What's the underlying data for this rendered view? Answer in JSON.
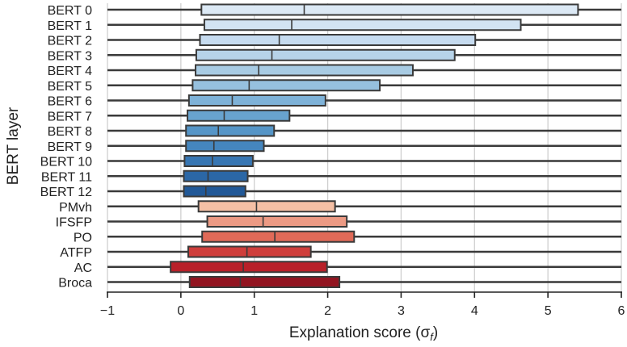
{
  "chart_data": {
    "type": "box",
    "orientation": "horizontal",
    "xlabel": "Explanation score (σ",
    "xlabel_sub": "f",
    "xlabel_close": ")",
    "ylabel": "BERT layer",
    "xlim": [
      -1,
      6
    ],
    "xticks": [
      -1,
      0,
      1,
      2,
      3,
      4,
      5,
      6
    ],
    "xtick_labels": [
      "−1",
      "0",
      "1",
      "2",
      "3",
      "4",
      "5",
      "6"
    ],
    "grid": "vertical",
    "categories": [
      "BERT 0",
      "BERT 1",
      "BERT 2",
      "BERT 3",
      "BERT 4",
      "BERT 5",
      "BERT 6",
      "BERT 7",
      "BERT 8",
      "BERT 9",
      "BERT 10",
      "BERT 11",
      "BERT 12",
      "PMvh",
      "IFSFP",
      "PO",
      "ATFP",
      "AC",
      "Broca"
    ],
    "boxes": [
      {
        "q1": 0.28,
        "median": 1.68,
        "q3": 5.41,
        "color": "#dce9f5"
      },
      {
        "q1": 0.32,
        "median": 1.51,
        "q3": 4.63,
        "color": "#d2e3f3"
      },
      {
        "q1": 0.26,
        "median": 1.34,
        "q3": 4.01,
        "color": "#c6dbef"
      },
      {
        "q1": 0.21,
        "median": 1.24,
        "q3": 3.73,
        "color": "#b7d3e9"
      },
      {
        "q1": 0.2,
        "median": 1.06,
        "q3": 3.16,
        "color": "#a8cbe3"
      },
      {
        "q1": 0.16,
        "median": 0.93,
        "q3": 2.71,
        "color": "#96c0de"
      },
      {
        "q1": 0.11,
        "median": 0.7,
        "q3": 1.97,
        "color": "#7eb2d8"
      },
      {
        "q1": 0.09,
        "median": 0.59,
        "q3": 1.48,
        "color": "#68a3cf"
      },
      {
        "q1": 0.07,
        "median": 0.51,
        "q3": 1.27,
        "color": "#5595c7"
      },
      {
        "q1": 0.07,
        "median": 0.45,
        "q3": 1.13,
        "color": "#4586be"
      },
      {
        "q1": 0.05,
        "median": 0.43,
        "q3": 0.98,
        "color": "#3776b3"
      },
      {
        "q1": 0.04,
        "median": 0.37,
        "q3": 0.91,
        "color": "#2b67a6"
      },
      {
        "q1": 0.04,
        "median": 0.34,
        "q3": 0.88,
        "color": "#215897"
      },
      {
        "q1": 0.24,
        "median": 1.03,
        "q3": 2.1,
        "color": "#f5c0a5"
      },
      {
        "q1": 0.36,
        "median": 1.12,
        "q3": 2.26,
        "color": "#ec9a84"
      },
      {
        "q1": 0.29,
        "median": 1.28,
        "q3": 2.36,
        "color": "#e06a58"
      },
      {
        "q1": 0.1,
        "median": 0.9,
        "q3": 1.77,
        "color": "#cf3e3b"
      },
      {
        "q1": -0.14,
        "median": 0.85,
        "q3": 1.99,
        "color": "#b82029"
      },
      {
        "q1": 0.12,
        "median": 0.81,
        "q3": 2.16,
        "color": "#921521"
      }
    ]
  }
}
